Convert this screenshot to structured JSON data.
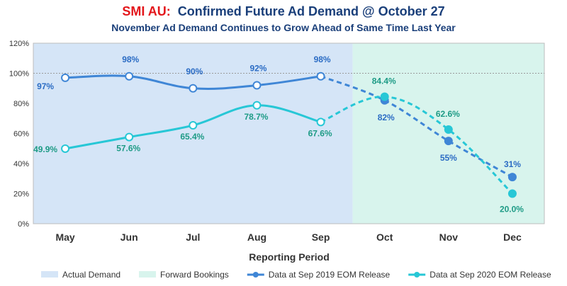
{
  "chart_data": {
    "type": "line",
    "title_brand": "SMI AU:",
    "title_rest": "Confirmed Future Ad Demand @ October 27",
    "subtitle": "November Ad Demand Continues to Grow Ahead of Same Time Last Year",
    "xlabel": "Reporting Period",
    "ylabel": "",
    "ylim": [
      0,
      120
    ],
    "yticks": [
      "0%",
      "20%",
      "40%",
      "60%",
      "80%",
      "100%",
      "120%"
    ],
    "reference_line": 100,
    "categories": [
      "May",
      "Jun",
      "Jul",
      "Aug",
      "Sep",
      "Oct",
      "Nov",
      "Dec"
    ],
    "regions": [
      {
        "name": "Actual Demand",
        "from": "May",
        "to": "Sep",
        "color": "#d5e5f7"
      },
      {
        "name": "Forward Bookings",
        "from": "Oct",
        "to": "Dec",
        "color": "#d8f4ed"
      }
    ],
    "series": [
      {
        "name": "Data at Sep 2019 EOM Release",
        "color": "#3f86d6",
        "values": [
          97,
          98,
          90,
          92,
          98,
          82,
          55,
          31
        ],
        "labels": [
          "97%",
          "98%",
          "90%",
          "92%",
          "98%",
          "82%",
          "55%",
          "31%"
        ],
        "actual_count": 5
      },
      {
        "name": "Data at Sep 2020 EOM Release",
        "color": "#27c7d6",
        "values": [
          49.9,
          57.6,
          65.4,
          78.7,
          67.6,
          84.4,
          62.6,
          20.0
        ],
        "labels": [
          "49.9%",
          "57.6%",
          "65.4%",
          "78.7%",
          "67.6%",
          "84.4%",
          "62.6%",
          "20.0%"
        ],
        "actual_count": 5
      }
    ],
    "legend": [
      "Actual Demand",
      "Forward Bookings",
      "Data at Sep 2019 EOM Release",
      "Data at Sep 2020 EOM Release"
    ],
    "label_color_2020": "#1e9b86",
    "label_color_2019": "#2b6cc4"
  }
}
